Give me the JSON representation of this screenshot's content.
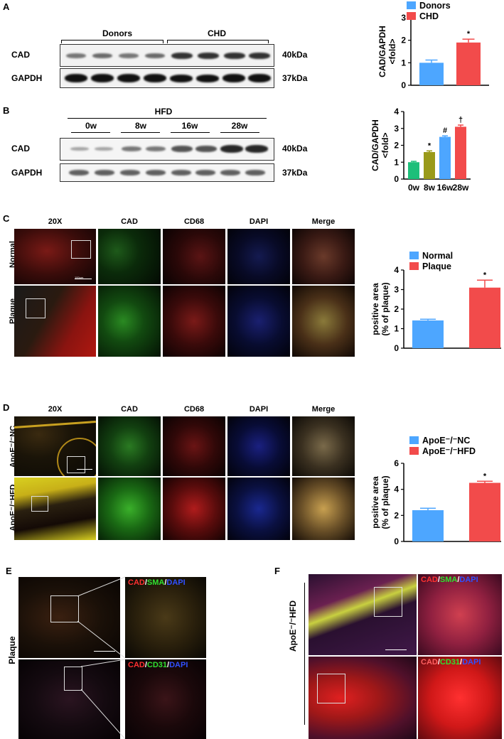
{
  "panels": {
    "A": {
      "letter": "A",
      "groups": [
        "Donors",
        "CHD"
      ],
      "rows": [
        "CAD",
        "GAPDH"
      ],
      "sizes": [
        "40kDa",
        "37kDa"
      ]
    },
    "B": {
      "letter": "B",
      "header": "HFD",
      "timepoints": [
        "0w",
        "8w",
        "16w",
        "28w"
      ],
      "rows": [
        "CAD",
        "GAPDH"
      ],
      "sizes": [
        "40kDa",
        "37kDa"
      ]
    },
    "C": {
      "letter": "C",
      "columns": [
        "20X",
        "CAD",
        "CD68",
        "DAPI",
        "Merge"
      ],
      "rows": [
        "Normal",
        "Plaque"
      ],
      "scale": "100μm"
    },
    "D": {
      "letter": "D",
      "columns": [
        "20X",
        "CAD",
        "CD68",
        "DAPI",
        "Merge"
      ],
      "rows": [
        "ApoE⁻/⁻NC",
        "ApoE⁻/⁻HFD"
      ],
      "scale": "100μm"
    },
    "E": {
      "letter": "E",
      "side_label": "Plaque",
      "stain1": [
        "CAD",
        "/",
        "SMA",
        "/",
        "DAPI"
      ],
      "stain2": [
        "CAD",
        "/",
        "CD31",
        "/",
        "DAPI"
      ],
      "scale": "100μm"
    },
    "F": {
      "letter": "F",
      "side_label": "ApoE⁻/⁻HFD",
      "stain1": [
        "CAD",
        "/",
        "SMA",
        "/",
        "DAPI"
      ],
      "stain2": [
        "CAD",
        "/",
        "CD31",
        "/",
        "DAPI"
      ],
      "scale": "100μm"
    }
  },
  "chart_data": [
    {
      "type": "bar",
      "categories": [
        "Donors",
        "CHD"
      ],
      "values": [
        1.0,
        1.9
      ],
      "errors": [
        0.12,
        0.15
      ],
      "colors": [
        "#4da6ff",
        "#f24b4b"
      ],
      "sig": [
        "",
        "*"
      ],
      "ylabel": "CAD/GAPDH",
      "ylabel2": "<fold>",
      "yticks": [
        0,
        1,
        2,
        3
      ],
      "ylim": [
        0,
        3
      ],
      "legend": [
        "Donors",
        "CHD"
      ],
      "legend_position": "top"
    },
    {
      "type": "bar",
      "categories": [
        "0w",
        "8w",
        "16w",
        "28w"
      ],
      "values": [
        1.0,
        1.6,
        2.5,
        3.1
      ],
      "errors": [
        0.05,
        0.07,
        0.06,
        0.1
      ],
      "colors": [
        "#1dbf7a",
        "#9a9a1a",
        "#4da6ff",
        "#f24b4b"
      ],
      "sig": [
        "",
        "*",
        "#",
        "†"
      ],
      "ylabel": "CAD/GAPDH",
      "ylabel2": "<fold>",
      "yticks": [
        0,
        1,
        2,
        3,
        4
      ],
      "ylim": [
        0,
        4
      ]
    },
    {
      "type": "bar",
      "categories": [
        "Normal",
        "Plaque"
      ],
      "values": [
        1.42,
        3.1
      ],
      "errors": [
        0.06,
        0.38
      ],
      "colors": [
        "#4da6ff",
        "#f24b4b"
      ],
      "sig": [
        "",
        "*"
      ],
      "ylabel": "positive area",
      "ylabel2": "(% of plaque)",
      "yticks": [
        0,
        1,
        2,
        3,
        4
      ],
      "ylim": [
        0,
        4
      ],
      "legend": [
        "Normal",
        "Plaque"
      ],
      "legend_position": "top"
    },
    {
      "type": "bar",
      "categories": [
        "ApoE⁻/⁻NC",
        "ApoE⁻/⁻HFD"
      ],
      "values": [
        2.4,
        4.5
      ],
      "errors": [
        0.15,
        0.12
      ],
      "colors": [
        "#4da6ff",
        "#f24b4b"
      ],
      "sig": [
        "",
        "*"
      ],
      "ylabel": "positive area",
      "ylabel2": "(% of plaque)",
      "yticks": [
        0,
        2,
        4,
        6
      ],
      "ylim": [
        0,
        6
      ],
      "legend": [
        "ApoE⁻/⁻NC",
        "ApoE⁻/⁻HFD"
      ],
      "legend_position": "top"
    }
  ]
}
